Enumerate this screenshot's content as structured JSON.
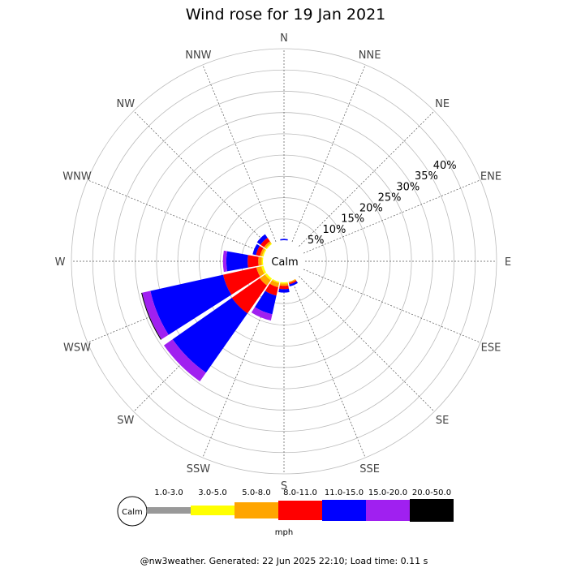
{
  "chart_data": {
    "type": "wind-rose",
    "title": "Wind rose for 19 Jan 2021",
    "directions": [
      "N",
      "NNE",
      "NE",
      "ENE",
      "E",
      "ESE",
      "SE",
      "SSE",
      "S",
      "SSW",
      "SW",
      "WSW",
      "W",
      "WNW",
      "NW",
      "NNW"
    ],
    "radial_ticks": [
      "5%",
      "10%",
      "15%",
      "20%",
      "25%",
      "30%",
      "35%",
      "40%"
    ],
    "radial_max": 45,
    "calm_label": "Calm",
    "units": "mph",
    "speed_bins": [
      {
        "label": "1.0-3.0",
        "color": "#999999"
      },
      {
        "label": "3.0-5.0",
        "color": "#ffff00"
      },
      {
        "label": "5.0-8.0",
        "color": "#ffa500"
      },
      {
        "label": "8.0-11.0",
        "color": "#ff0000"
      },
      {
        "label": "11.0-15.0",
        "color": "#0000ff"
      },
      {
        "label": "15.0-20.0",
        "color": "#a020f0"
      },
      {
        "label": "20.0-50.0",
        "color": "#000000"
      }
    ],
    "series": [
      {
        "direction": "N",
        "values": [
          0,
          0,
          0,
          0,
          0.3,
          0,
          0
        ]
      },
      {
        "direction": "SSE",
        "values": [
          0,
          0,
          0.3,
          0.3,
          0.5,
          0,
          0
        ]
      },
      {
        "direction": "S",
        "values": [
          0,
          0.3,
          0.5,
          0.8,
          0.8,
          0,
          0
        ]
      },
      {
        "direction": "SSW",
        "values": [
          0,
          0.3,
          1.0,
          2.0,
          4.5,
          1.5,
          0
        ]
      },
      {
        "direction": "SW",
        "values": [
          0,
          0.5,
          1.5,
          8.0,
          17.0,
          2.5,
          0
        ]
      },
      {
        "direction": "WSW",
        "values": [
          0,
          0.5,
          1.2,
          8.0,
          17.5,
          2.0,
          0.2
        ]
      },
      {
        "direction": "W",
        "values": [
          0,
          0.3,
          0.8,
          2.5,
          5.0,
          0.8,
          0
        ]
      },
      {
        "direction": "WNW",
        "values": [
          0,
          0.3,
          0.5,
          1.0,
          0.8,
          0,
          0
        ]
      },
      {
        "direction": "NW",
        "values": [
          0,
          0.3,
          0.5,
          1.0,
          1.0,
          0,
          0
        ]
      }
    ]
  },
  "footer": "@nw3weather. Generated: 22 Jun 2025 22:10; Load time: 0.11 s"
}
